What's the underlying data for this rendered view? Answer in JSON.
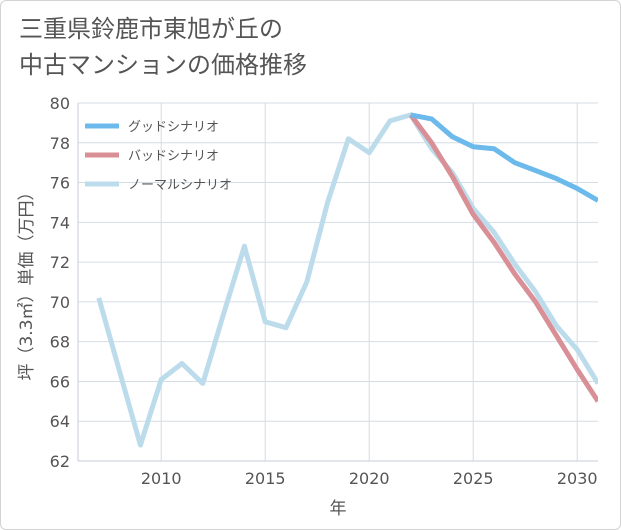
{
  "title": {
    "line1": "三重県鈴鹿市東旭が丘の",
    "line2": "中古マンションの価格推移"
  },
  "chart_data": {
    "type": "line",
    "xlabel": "年",
    "ylabel": "坪（3.3㎡）単価（万円）",
    "xlim": [
      2006,
      2031
    ],
    "ylim": [
      62,
      80
    ],
    "xticks": [
      2010,
      2015,
      2020,
      2025,
      2030
    ],
    "yticks": [
      62,
      64,
      66,
      68,
      70,
      72,
      74,
      76,
      78,
      80
    ],
    "grid": true,
    "legend_position": "top-left",
    "series": [
      {
        "name": "グッドシナリオ",
        "color": "#6cb9ec",
        "x": [
          2022,
          2023,
          2024,
          2025,
          2026,
          2027,
          2028,
          2029,
          2030,
          2031
        ],
        "y": [
          79.4,
          79.2,
          78.3,
          77.8,
          77.7,
          77.0,
          76.6,
          76.2,
          75.7,
          75.1
        ]
      },
      {
        "name": "バッドシナリオ",
        "color": "#d98f96",
        "x": [
          2022,
          2023,
          2024,
          2025,
          2026,
          2027,
          2028,
          2029,
          2030,
          2031
        ],
        "y": [
          79.4,
          78.0,
          76.3,
          74.4,
          73.0,
          71.4,
          70.0,
          68.3,
          66.6,
          65.0
        ]
      },
      {
        "name": "ノーマルシナリオ",
        "color": "#bcdcec",
        "x": [
          2007,
          2008,
          2009,
          2010,
          2011,
          2012,
          2013,
          2014,
          2015,
          2016,
          2017,
          2018,
          2019,
          2020,
          2021,
          2022,
          2023,
          2024,
          2025,
          2026,
          2027,
          2028,
          2029,
          2030,
          2031
        ],
        "y": [
          70.2,
          66.5,
          62.8,
          66.1,
          66.9,
          65.9,
          69.4,
          72.8,
          69.0,
          68.7,
          71.0,
          75.0,
          78.2,
          77.5,
          79.1,
          79.4,
          77.7,
          76.5,
          74.7,
          73.5,
          71.9,
          70.5,
          68.8,
          67.6,
          65.9
        ]
      }
    ]
  }
}
